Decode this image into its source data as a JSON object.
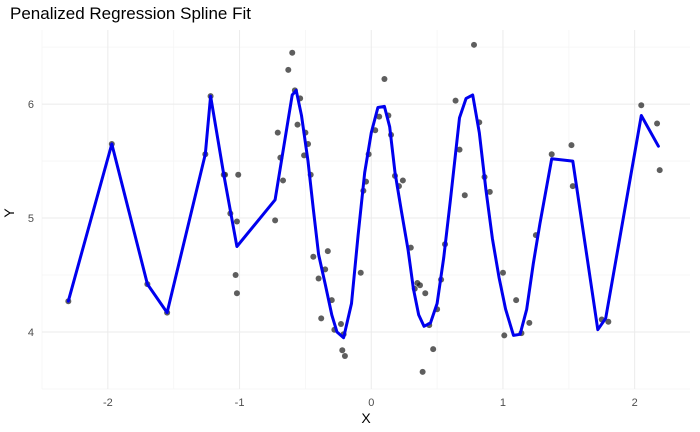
{
  "chart_data": {
    "type": "scatter",
    "title": "Penalized Regression Spline Fit",
    "xlabel": "X",
    "ylabel": "Y",
    "xlim": [
      -2.5,
      2.42
    ],
    "ylim": [
      3.5,
      6.65
    ],
    "x_ticks": [
      -2,
      -1,
      0,
      1,
      2
    ],
    "y_ticks": [
      4,
      5,
      6
    ],
    "grid": true,
    "colors": {
      "points": "#1a1a1a",
      "fit": "#0000ee",
      "grid": "#ebebeb"
    },
    "series": [
      {
        "type": "scatter",
        "x": [
          -2.3,
          -1.97,
          -1.7,
          -1.55,
          -1.26,
          -1.22,
          -1.12,
          -1.11,
          -1.07,
          -1.03,
          -1.02,
          -1.02,
          -1.01,
          -0.73,
          -0.71,
          -0.69,
          -0.67,
          -0.63,
          -0.6,
          -0.58,
          -0.56,
          -0.54,
          -0.51,
          -0.5,
          -0.48,
          -0.46,
          -0.44,
          -0.4,
          -0.38,
          -0.35,
          -0.33,
          -0.3,
          -0.28,
          -0.23,
          -0.22,
          -0.21,
          -0.2,
          -0.08,
          -0.06,
          -0.04,
          -0.02,
          0.03,
          0.06,
          0.1,
          0.13,
          0.15,
          0.18,
          0.21,
          0.24,
          0.3,
          0.33,
          0.35,
          0.37,
          0.39,
          0.41,
          0.44,
          0.47,
          0.5,
          0.53,
          0.56,
          0.64,
          0.67,
          0.71,
          0.78,
          0.82,
          0.86,
          0.9,
          1.0,
          1.01,
          1.1,
          1.14,
          1.2,
          1.25,
          1.37,
          1.52,
          1.53,
          1.75,
          1.8,
          2.05,
          2.17,
          2.19
        ],
        "y": [
          4.27,
          5.65,
          4.42,
          4.17,
          5.56,
          6.07,
          5.38,
          5.38,
          5.04,
          4.5,
          4.34,
          4.97,
          5.38,
          4.98,
          5.75,
          5.53,
          5.33,
          6.3,
          6.45,
          6.12,
          5.82,
          6.05,
          5.55,
          5.75,
          5.65,
          5.38,
          4.66,
          4.47,
          4.12,
          4.55,
          4.71,
          4.28,
          4.02,
          4.07,
          3.84,
          3.98,
          3.79,
          4.52,
          5.24,
          5.32,
          5.56,
          5.77,
          5.89,
          6.22,
          5.9,
          5.73,
          5.37,
          5.28,
          5.33,
          4.74,
          4.38,
          4.43,
          4.41,
          3.65,
          4.34,
          4.06,
          3.85,
          4.2,
          4.46,
          4.77,
          6.03,
          5.6,
          5.2,
          6.52,
          5.84,
          5.36,
          5.23,
          4.52,
          3.97,
          4.28,
          3.99,
          4.08,
          4.85,
          5.56,
          5.64,
          5.28,
          4.11,
          4.09,
          5.99,
          5.83,
          5.42
        ]
      },
      {
        "type": "line",
        "x": [
          -2.3,
          -1.97,
          -1.7,
          -1.55,
          -1.26,
          -1.22,
          -1.12,
          -1.02,
          -0.73,
          -0.6,
          -0.57,
          -0.53,
          -0.48,
          -0.44,
          -0.4,
          -0.35,
          -0.3,
          -0.26,
          -0.21,
          -0.15,
          -0.1,
          -0.05,
          0.0,
          0.05,
          0.1,
          0.14,
          0.18,
          0.23,
          0.28,
          0.32,
          0.36,
          0.4,
          0.45,
          0.5,
          0.55,
          0.6,
          0.67,
          0.72,
          0.77,
          0.82,
          0.87,
          0.92,
          0.97,
          1.02,
          1.08,
          1.13,
          1.18,
          1.23,
          1.28,
          1.37,
          1.53,
          1.72,
          1.78,
          2.05,
          2.18
        ],
        "y": [
          4.27,
          5.65,
          4.42,
          4.17,
          5.56,
          6.07,
          5.38,
          4.75,
          5.16,
          6.08,
          6.12,
          5.9,
          5.5,
          5.08,
          4.68,
          4.42,
          4.15,
          4.0,
          3.95,
          4.25,
          4.85,
          5.4,
          5.75,
          5.97,
          5.98,
          5.8,
          5.4,
          5.05,
          4.72,
          4.38,
          4.15,
          4.05,
          4.08,
          4.25,
          4.65,
          5.15,
          5.88,
          6.05,
          6.08,
          5.75,
          5.25,
          4.82,
          4.48,
          4.2,
          3.97,
          3.98,
          4.2,
          4.6,
          4.95,
          5.52,
          5.5,
          4.02,
          4.12,
          5.9,
          5.63
        ]
      }
    ]
  }
}
